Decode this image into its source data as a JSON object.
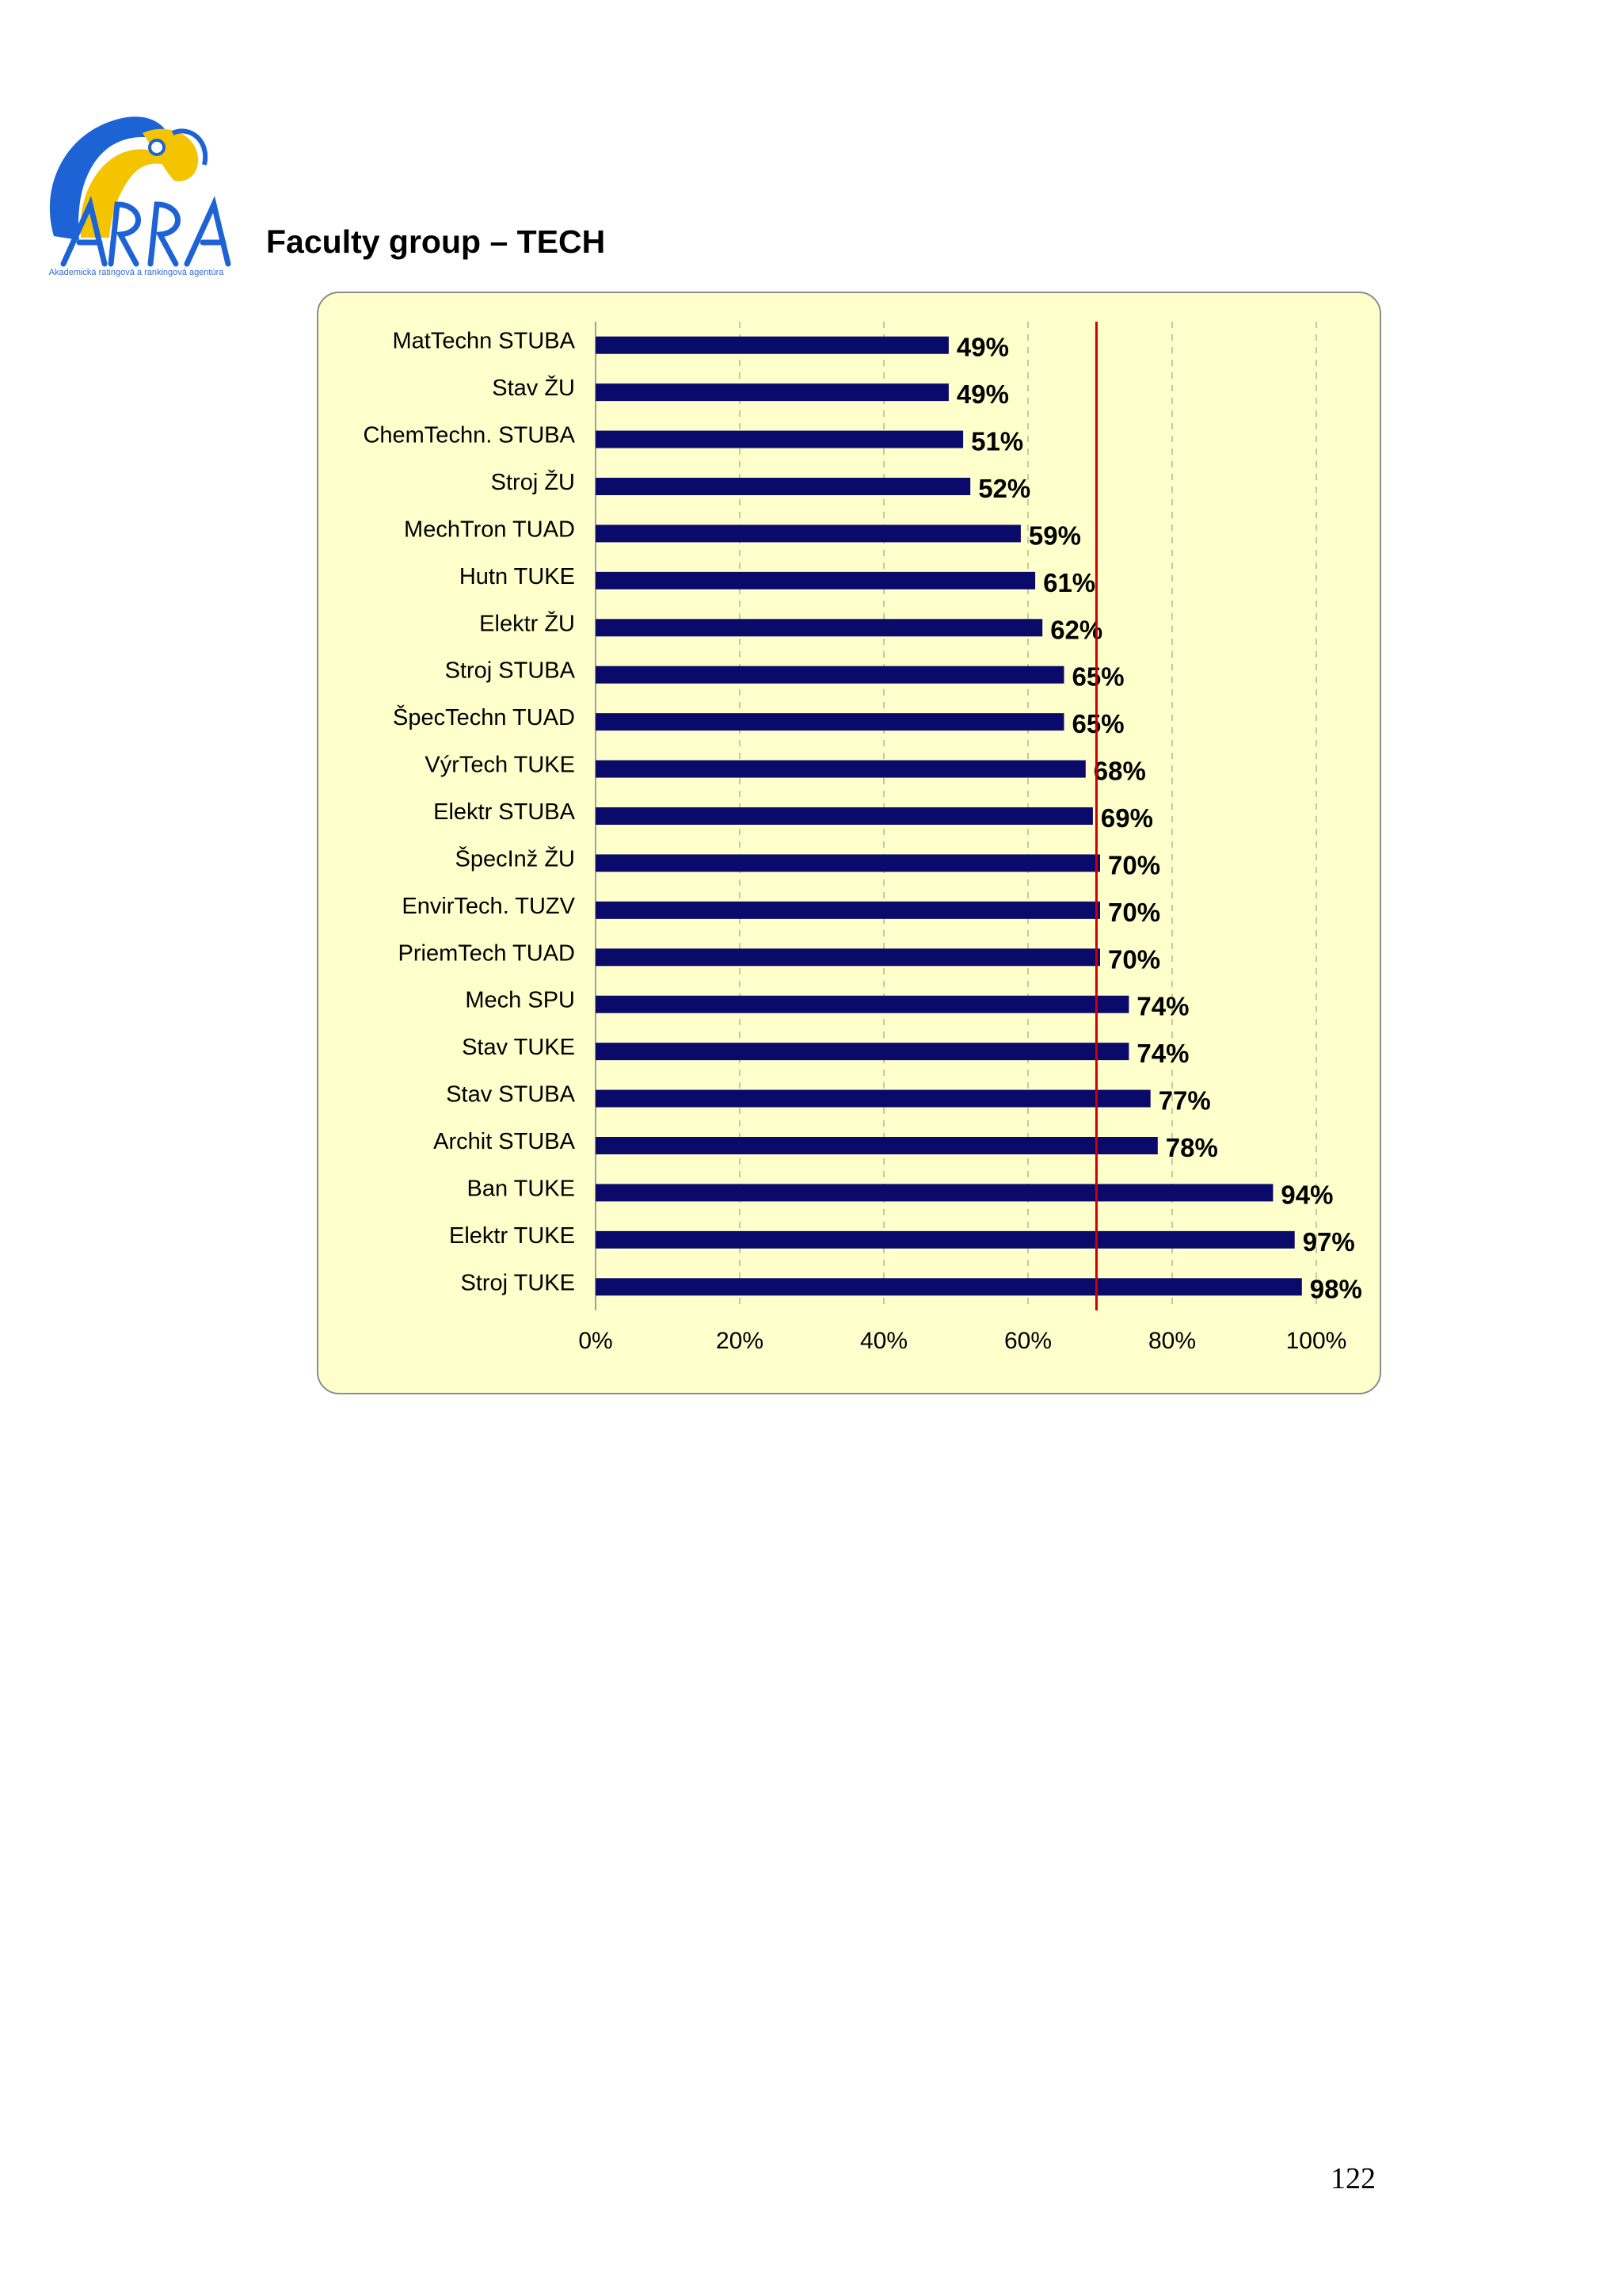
{
  "header": {
    "logo_text": "ARRA",
    "logo_subtitle": "Akademická ratingová a rankingová agentúra",
    "section_title": "Faculty group – TECH"
  },
  "page_number": "122",
  "colors": {
    "bar": "#0a0a6b",
    "reference_line": "#cc0000",
    "chart_background": "#ffffcc",
    "logo_blue": "#1e63d6",
    "logo_yellow": "#f5c400"
  },
  "chart_data": {
    "type": "bar",
    "orientation": "horizontal",
    "categories": [
      "MatTechn STUBA",
      "Stav ŽU",
      "ChemTechn. STUBA",
      "Stroj ŽU",
      "MechTron TUAD",
      "Hutn TUKE",
      "Elektr ŽU",
      "Stroj STUBA",
      "ŠpecTechn TUAD",
      "VýrTech TUKE",
      "Elektr STUBA",
      "ŠpecInž ŽU",
      "EnvirTech. TUZV",
      "PriemTech TUAD",
      "Mech SPU",
      "Stav TUKE",
      "Stav STUBA",
      "Archit STUBA",
      "Ban TUKE",
      "Elektr TUKE",
      "Stroj TUKE"
    ],
    "values": [
      49,
      49,
      51,
      52,
      59,
      61,
      62,
      65,
      65,
      68,
      69,
      70,
      70,
      70,
      74,
      74,
      77,
      78,
      94,
      97,
      98
    ],
    "value_labels": [
      "49%",
      "49%",
      "51%",
      "52%",
      "59%",
      "61%",
      "62%",
      "65%",
      "65%",
      "68%",
      "69%",
      "70%",
      "70%",
      "70%",
      "74%",
      "74%",
      "77%",
      "78%",
      "94%",
      "97%",
      "98%"
    ],
    "xlim": [
      0,
      100
    ],
    "x_ticks": [
      "0%",
      "20%",
      "40%",
      "60%",
      "80%",
      "100%"
    ],
    "x_tick_values": [
      0,
      20,
      40,
      60,
      80,
      100
    ],
    "reference_line": 69.5,
    "grid": "vertical dashed",
    "legend": "none",
    "title": "",
    "xlabel": "",
    "ylabel": ""
  }
}
